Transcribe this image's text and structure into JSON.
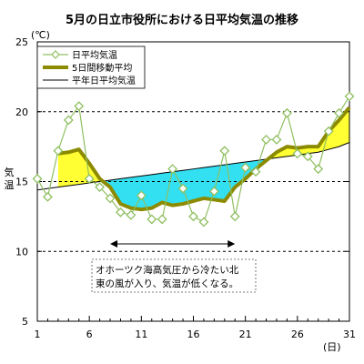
{
  "chart_data": {
    "type": "line",
    "title": "5月の日立市役所における日平均気温の推移",
    "unit_label": "(℃)",
    "ylabel": "気温",
    "xlabel_unit": "(日)",
    "xlim": [
      1,
      31
    ],
    "ylim": [
      5,
      25
    ],
    "x_ticks": [
      1,
      6,
      11,
      16,
      21,
      26,
      31
    ],
    "y_ticks": [
      5,
      10,
      15,
      20,
      25
    ],
    "grid": "horizontal dashed at 10, 15, 20",
    "legend_position": "top-center",
    "x": [
      1,
      2,
      3,
      4,
      5,
      6,
      7,
      8,
      9,
      10,
      11,
      12,
      13,
      14,
      15,
      16,
      17,
      18,
      19,
      20,
      21,
      22,
      23,
      24,
      25,
      26,
      27,
      28,
      29,
      30,
      31
    ],
    "series": [
      {
        "name": "日平均気温",
        "color": "#8fbf60",
        "marker": "diamond",
        "values": [
          15.2,
          13.9,
          17.2,
          19.4,
          20.4,
          15.2,
          14.6,
          13.8,
          12.8,
          12.6,
          14.0,
          12.3,
          12.3,
          15.9,
          14.5,
          12.5,
          12.1,
          14.3,
          17.2,
          12.5,
          16.0,
          15.7,
          18.0,
          18.0,
          19.9,
          17.0,
          16.8,
          15.9,
          18.6,
          19.9,
          21.1
        ]
      },
      {
        "name": "5日間移動平均",
        "color": "#8c8a00",
        "values": [
          null,
          null,
          17.0,
          17.1,
          17.3,
          16.3,
          15.2,
          14.6,
          13.4,
          13.1,
          13.0,
          13.1,
          13.5,
          13.3,
          13.4,
          13.6,
          13.8,
          13.7,
          13.6,
          14.6,
          15.2,
          15.9,
          16.5,
          17.1,
          17.5,
          17.4,
          17.5,
          17.5,
          18.6,
          19.4,
          20.3
        ]
      },
      {
        "name": "平年日平均気温",
        "color": "#000000",
        "values": [
          14.4,
          14.5,
          14.6,
          14.7,
          14.8,
          14.9,
          15.0,
          15.1,
          15.2,
          15.3,
          15.4,
          15.5,
          15.6,
          15.7,
          15.8,
          15.9,
          16.0,
          16.1,
          16.2,
          16.3,
          16.4,
          16.5,
          16.6,
          16.7,
          16.8,
          16.9,
          17.0,
          17.1,
          17.3,
          17.5,
          17.8
        ]
      }
    ],
    "fill_above_color": "#ffff33",
    "fill_below_color": "#33e0f2",
    "annotation": {
      "text_lines": [
        "オホーツク海高気圧から冷たい北",
        "東の風が入り、気温が低くなる。"
      ],
      "range_x": [
        8,
        20
      ]
    }
  }
}
